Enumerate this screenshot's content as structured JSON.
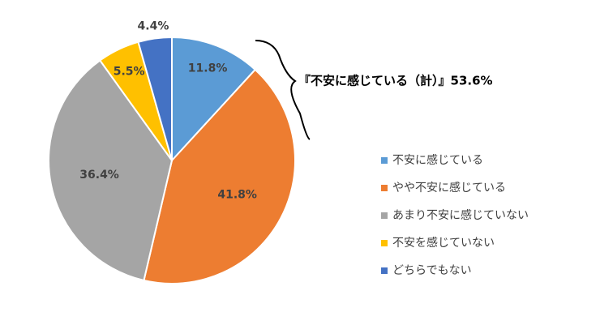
{
  "chart_data": {
    "type": "pie",
    "categories": [
      "不安に感じている",
      "やや不安に感じている",
      "あまり不安に感じていない",
      "不安を感じていない",
      "どちらでもない"
    ],
    "values": [
      11.8,
      41.8,
      36.4,
      5.5,
      4.4
    ],
    "value_labels": [
      "11.8%",
      "41.8%",
      "36.4%",
      "5.5%",
      "4.4%"
    ],
    "colors": [
      "#5b9bd5",
      "#ed7d31",
      "#a5a5a5",
      "#ffc000",
      "#4472c4"
    ],
    "annotation": "『不安に感じている（計）』53.6%",
    "legend": "right"
  }
}
